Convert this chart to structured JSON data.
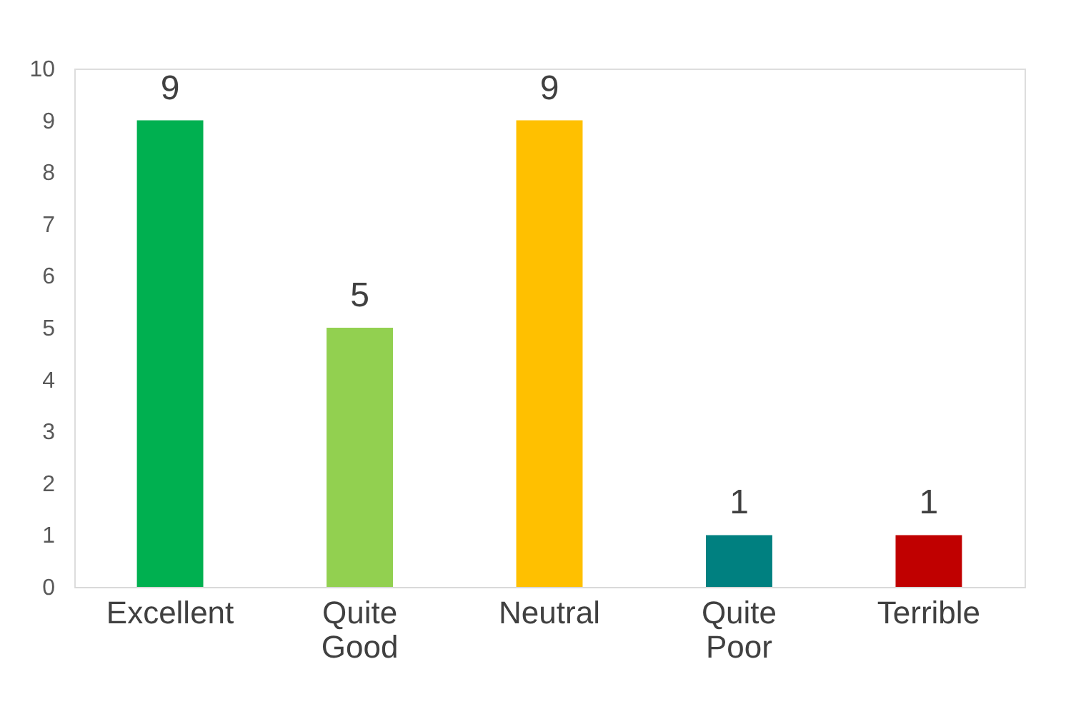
{
  "chart_data": {
    "type": "bar",
    "categories": [
      "Excellent",
      "Quite Good",
      "Neutral",
      "Quite Poor",
      "Terrible"
    ],
    "values": [
      9,
      5,
      9,
      1,
      1
    ],
    "colors": [
      "#00b050",
      "#92d050",
      "#ffc000",
      "#008080",
      "#c00000"
    ],
    "ylim": [
      0,
      10
    ],
    "yticks": [
      0,
      1,
      2,
      3,
      4,
      5,
      6,
      7,
      8,
      9,
      10
    ],
    "grid": false,
    "data_labels": true
  }
}
